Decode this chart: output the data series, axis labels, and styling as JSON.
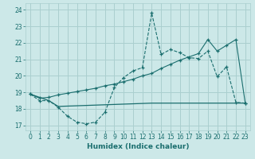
{
  "xlabel": "Humidex (Indice chaleur)",
  "background_color": "#cce8e8",
  "grid_color": "#aacfcf",
  "line_color": "#1a6e6e",
  "xlim": [
    -0.5,
    23.5
  ],
  "ylim": [
    16.7,
    24.4
  ],
  "yticks": [
    17,
    18,
    19,
    20,
    21,
    22,
    23,
    24
  ],
  "xticks": [
    0,
    1,
    2,
    3,
    4,
    5,
    6,
    7,
    8,
    9,
    10,
    11,
    12,
    13,
    14,
    15,
    16,
    17,
    18,
    19,
    20,
    21,
    22,
    23
  ],
  "xticklabels": [
    "0",
    "1",
    "2",
    "3",
    "4",
    "5",
    "6",
    "7",
    "8",
    "9",
    "10",
    "11",
    "12",
    "13",
    "14",
    "15",
    "16",
    "17",
    "18",
    "19",
    "20",
    "21",
    "22",
    "23"
  ],
  "line1_x": [
    0,
    1,
    2,
    3,
    4,
    5,
    6,
    7,
    8,
    9,
    10,
    11,
    12,
    13,
    14,
    15,
    16,
    17,
    18,
    19,
    20,
    21,
    22,
    23
  ],
  "line1_y": [
    18.9,
    18.5,
    18.5,
    18.1,
    17.55,
    17.2,
    17.1,
    17.2,
    17.8,
    19.3,
    19.9,
    20.3,
    20.5,
    23.8,
    21.3,
    21.6,
    21.4,
    21.1,
    21.05,
    21.5,
    19.95,
    20.55,
    18.4,
    18.35
  ],
  "line2_x": [
    0,
    2,
    3,
    13,
    23
  ],
  "line2_y": [
    18.9,
    18.5,
    18.15,
    18.35,
    18.35
  ],
  "line3_x": [
    0,
    1,
    2,
    3,
    4,
    5,
    6,
    7,
    8,
    9,
    10,
    11,
    12,
    13,
    14,
    15,
    16,
    17,
    18,
    19,
    20,
    21,
    22,
    23
  ],
  "line3_y": [
    18.9,
    18.65,
    18.7,
    18.85,
    18.95,
    19.05,
    19.15,
    19.25,
    19.4,
    19.5,
    19.65,
    19.8,
    20.0,
    20.15,
    20.45,
    20.7,
    20.95,
    21.15,
    21.35,
    22.2,
    21.5,
    21.85,
    22.2,
    18.35
  ]
}
